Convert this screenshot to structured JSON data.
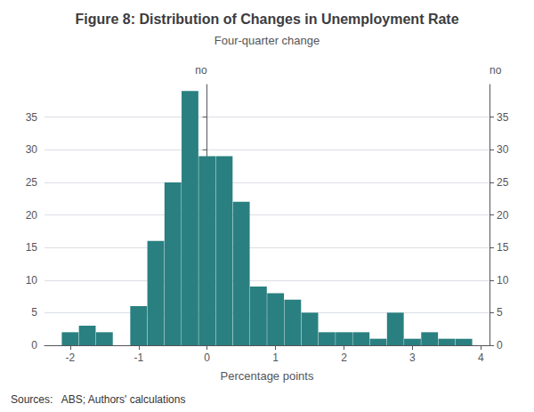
{
  "chart_data": {
    "type": "bar",
    "title": "Figure 8: Distribution of Changes in Unemployment Rate",
    "subtitle": "Four-quarter change",
    "xlabel": "Percentage points",
    "ylabel": "no",
    "y2label": "no",
    "annotations": [
      "Sources:   ABS; Authors' calculations"
    ],
    "x": [
      -2.0,
      -1.75,
      -1.5,
      -1.25,
      -1.0,
      -0.75,
      -0.5,
      -0.25,
      0.0,
      0.25,
      0.5,
      0.75,
      1.0,
      1.25,
      1.5,
      1.75,
      2.0,
      2.25,
      2.5,
      2.75,
      3.0,
      3.25,
      3.5,
      3.75
    ],
    "values": [
      2,
      3,
      2,
      0,
      6,
      16,
      25,
      39,
      29,
      29,
      22,
      9,
      8,
      7,
      5,
      2,
      2,
      2,
      1,
      5,
      1,
      2,
      1,
      1
    ],
    "color": "#2a8080",
    "xlim": [
      -2.375,
      4.125
    ],
    "xticks": [
      -2,
      -1,
      0,
      1,
      2,
      3,
      4
    ],
    "ylim": [
      0,
      40
    ],
    "yticks": [
      0,
      5,
      10,
      15,
      20,
      25,
      30,
      35
    ],
    "y2lim": [
      0,
      40
    ],
    "y2ticks": [
      0,
      5,
      10,
      15,
      20,
      25,
      30,
      35
    ],
    "grid": true
  }
}
